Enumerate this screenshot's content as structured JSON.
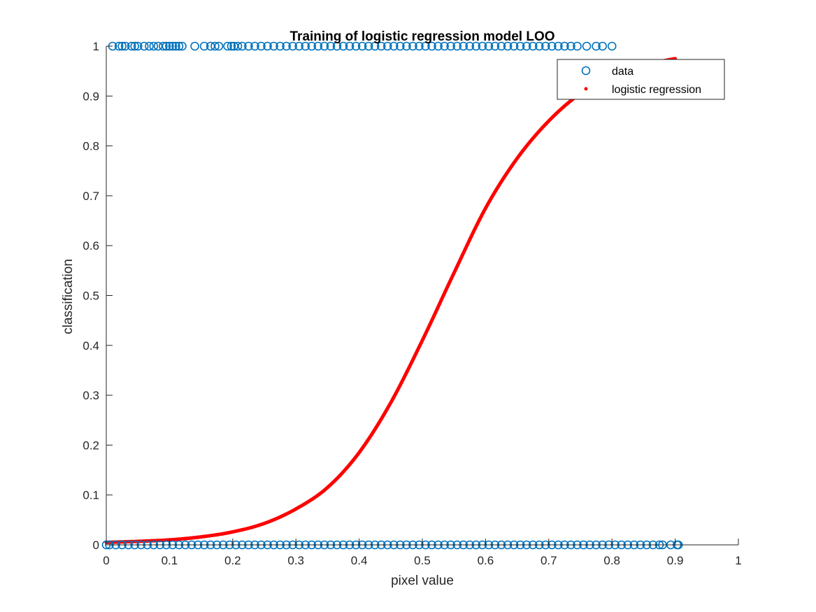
{
  "colors": {
    "data_marker": "#0072BD",
    "regression_line": "#FF0000",
    "axis": "#262626",
    "background": "#FFFFFF"
  },
  "chart_data": {
    "type": "scatter",
    "title": "Training of logistic regression model LOO",
    "xlabel": "pixel value",
    "ylabel": "classification",
    "xlim": [
      0,
      1
    ],
    "ylim": [
      0,
      1
    ],
    "xticks": [
      "0",
      "0.1",
      "0.2",
      "0.3",
      "0.4",
      "0.5",
      "0.6",
      "0.7",
      "0.8",
      "0.9",
      "1"
    ],
    "yticks": [
      "0",
      "0.1",
      "0.2",
      "0.3",
      "0.4",
      "0.5",
      "0.6",
      "0.7",
      "0.8",
      "0.9",
      "1"
    ],
    "grid": false,
    "legend_position": "top-right",
    "legend": [
      "data",
      "logistic regression"
    ],
    "series": [
      {
        "name": "data",
        "kind": "scatter",
        "marker": "open-circle",
        "points": [
          {
            "x": 0.01,
            "y": 1
          },
          {
            "x": 0.02,
            "y": 1
          },
          {
            "x": 0.025,
            "y": 1
          },
          {
            "x": 0.03,
            "y": 1
          },
          {
            "x": 0.04,
            "y": 1
          },
          {
            "x": 0.045,
            "y": 1
          },
          {
            "x": 0.05,
            "y": 1
          },
          {
            "x": 0.06,
            "y": 1
          },
          {
            "x": 0.068,
            "y": 1
          },
          {
            "x": 0.075,
            "y": 1
          },
          {
            "x": 0.082,
            "y": 1
          },
          {
            "x": 0.09,
            "y": 1
          },
          {
            "x": 0.095,
            "y": 1
          },
          {
            "x": 0.1,
            "y": 1
          },
          {
            "x": 0.105,
            "y": 1
          },
          {
            "x": 0.11,
            "y": 1
          },
          {
            "x": 0.115,
            "y": 1
          },
          {
            "x": 0.12,
            "y": 1
          },
          {
            "x": 0.14,
            "y": 1
          },
          {
            "x": 0.155,
            "y": 1
          },
          {
            "x": 0.165,
            "y": 1
          },
          {
            "x": 0.172,
            "y": 1
          },
          {
            "x": 0.178,
            "y": 1
          },
          {
            "x": 0.192,
            "y": 1
          },
          {
            "x": 0.198,
            "y": 1
          },
          {
            "x": 0.202,
            "y": 1
          },
          {
            "x": 0.208,
            "y": 1
          },
          {
            "x": 0.215,
            "y": 1
          },
          {
            "x": 0.225,
            "y": 1
          },
          {
            "x": 0.235,
            "y": 1
          },
          {
            "x": 0.245,
            "y": 1
          },
          {
            "x": 0.255,
            "y": 1
          },
          {
            "x": 0.265,
            "y": 1
          },
          {
            "x": 0.275,
            "y": 1
          },
          {
            "x": 0.285,
            "y": 1
          },
          {
            "x": 0.295,
            "y": 1
          },
          {
            "x": 0.305,
            "y": 1
          },
          {
            "x": 0.315,
            "y": 1
          },
          {
            "x": 0.325,
            "y": 1
          },
          {
            "x": 0.335,
            "y": 1
          },
          {
            "x": 0.345,
            "y": 1
          },
          {
            "x": 0.355,
            "y": 1
          },
          {
            "x": 0.365,
            "y": 1
          },
          {
            "x": 0.375,
            "y": 1
          },
          {
            "x": 0.385,
            "y": 1
          },
          {
            "x": 0.395,
            "y": 1
          },
          {
            "x": 0.405,
            "y": 1
          },
          {
            "x": 0.415,
            "y": 1
          },
          {
            "x": 0.425,
            "y": 1
          },
          {
            "x": 0.435,
            "y": 1
          },
          {
            "x": 0.445,
            "y": 1
          },
          {
            "x": 0.455,
            "y": 1
          },
          {
            "x": 0.465,
            "y": 1
          },
          {
            "x": 0.475,
            "y": 1
          },
          {
            "x": 0.485,
            "y": 1
          },
          {
            "x": 0.495,
            "y": 1
          },
          {
            "x": 0.505,
            "y": 1
          },
          {
            "x": 0.515,
            "y": 1
          },
          {
            "x": 0.525,
            "y": 1
          },
          {
            "x": 0.535,
            "y": 1
          },
          {
            "x": 0.545,
            "y": 1
          },
          {
            "x": 0.555,
            "y": 1
          },
          {
            "x": 0.565,
            "y": 1
          },
          {
            "x": 0.575,
            "y": 1
          },
          {
            "x": 0.585,
            "y": 1
          },
          {
            "x": 0.595,
            "y": 1
          },
          {
            "x": 0.605,
            "y": 1
          },
          {
            "x": 0.615,
            "y": 1
          },
          {
            "x": 0.625,
            "y": 1
          },
          {
            "x": 0.635,
            "y": 1
          },
          {
            "x": 0.645,
            "y": 1
          },
          {
            "x": 0.655,
            "y": 1
          },
          {
            "x": 0.665,
            "y": 1
          },
          {
            "x": 0.675,
            "y": 1
          },
          {
            "x": 0.685,
            "y": 1
          },
          {
            "x": 0.695,
            "y": 1
          },
          {
            "x": 0.705,
            "y": 1
          },
          {
            "x": 0.715,
            "y": 1
          },
          {
            "x": 0.725,
            "y": 1
          },
          {
            "x": 0.735,
            "y": 1
          },
          {
            "x": 0.745,
            "y": 1
          },
          {
            "x": 0.76,
            "y": 1
          },
          {
            "x": 0.775,
            "y": 1
          },
          {
            "x": 0.785,
            "y": 1
          },
          {
            "x": 0.8,
            "y": 1
          },
          {
            "x": 0.0,
            "y": 0
          },
          {
            "x": 0.005,
            "y": 0
          },
          {
            "x": 0.015,
            "y": 0
          },
          {
            "x": 0.025,
            "y": 0
          },
          {
            "x": 0.035,
            "y": 0
          },
          {
            "x": 0.045,
            "y": 0
          },
          {
            "x": 0.055,
            "y": 0
          },
          {
            "x": 0.065,
            "y": 0
          },
          {
            "x": 0.075,
            "y": 0
          },
          {
            "x": 0.085,
            "y": 0
          },
          {
            "x": 0.095,
            "y": 0
          },
          {
            "x": 0.105,
            "y": 0
          },
          {
            "x": 0.115,
            "y": 0
          },
          {
            "x": 0.125,
            "y": 0
          },
          {
            "x": 0.135,
            "y": 0
          },
          {
            "x": 0.145,
            "y": 0
          },
          {
            "x": 0.155,
            "y": 0
          },
          {
            "x": 0.165,
            "y": 0
          },
          {
            "x": 0.175,
            "y": 0
          },
          {
            "x": 0.185,
            "y": 0
          },
          {
            "x": 0.195,
            "y": 0
          },
          {
            "x": 0.205,
            "y": 0
          },
          {
            "x": 0.215,
            "y": 0
          },
          {
            "x": 0.225,
            "y": 0
          },
          {
            "x": 0.235,
            "y": 0
          },
          {
            "x": 0.245,
            "y": 0
          },
          {
            "x": 0.255,
            "y": 0
          },
          {
            "x": 0.265,
            "y": 0
          },
          {
            "x": 0.275,
            "y": 0
          },
          {
            "x": 0.285,
            "y": 0
          },
          {
            "x": 0.295,
            "y": 0
          },
          {
            "x": 0.305,
            "y": 0
          },
          {
            "x": 0.315,
            "y": 0
          },
          {
            "x": 0.325,
            "y": 0
          },
          {
            "x": 0.335,
            "y": 0
          },
          {
            "x": 0.345,
            "y": 0
          },
          {
            "x": 0.355,
            "y": 0
          },
          {
            "x": 0.365,
            "y": 0
          },
          {
            "x": 0.375,
            "y": 0
          },
          {
            "x": 0.385,
            "y": 0
          },
          {
            "x": 0.395,
            "y": 0
          },
          {
            "x": 0.405,
            "y": 0
          },
          {
            "x": 0.415,
            "y": 0
          },
          {
            "x": 0.425,
            "y": 0
          },
          {
            "x": 0.435,
            "y": 0
          },
          {
            "x": 0.445,
            "y": 0
          },
          {
            "x": 0.455,
            "y": 0
          },
          {
            "x": 0.465,
            "y": 0
          },
          {
            "x": 0.475,
            "y": 0
          },
          {
            "x": 0.485,
            "y": 0
          },
          {
            "x": 0.495,
            "y": 0
          },
          {
            "x": 0.505,
            "y": 0
          },
          {
            "x": 0.515,
            "y": 0
          },
          {
            "x": 0.525,
            "y": 0
          },
          {
            "x": 0.535,
            "y": 0
          },
          {
            "x": 0.545,
            "y": 0
          },
          {
            "x": 0.555,
            "y": 0
          },
          {
            "x": 0.565,
            "y": 0
          },
          {
            "x": 0.575,
            "y": 0
          },
          {
            "x": 0.585,
            "y": 0
          },
          {
            "x": 0.595,
            "y": 0
          },
          {
            "x": 0.605,
            "y": 0
          },
          {
            "x": 0.615,
            "y": 0
          },
          {
            "x": 0.625,
            "y": 0
          },
          {
            "x": 0.635,
            "y": 0
          },
          {
            "x": 0.645,
            "y": 0
          },
          {
            "x": 0.655,
            "y": 0
          },
          {
            "x": 0.665,
            "y": 0
          },
          {
            "x": 0.675,
            "y": 0
          },
          {
            "x": 0.685,
            "y": 0
          },
          {
            "x": 0.695,
            "y": 0
          },
          {
            "x": 0.705,
            "y": 0
          },
          {
            "x": 0.715,
            "y": 0
          },
          {
            "x": 0.725,
            "y": 0
          },
          {
            "x": 0.735,
            "y": 0
          },
          {
            "x": 0.745,
            "y": 0
          },
          {
            "x": 0.755,
            "y": 0
          },
          {
            "x": 0.765,
            "y": 0
          },
          {
            "x": 0.775,
            "y": 0
          },
          {
            "x": 0.785,
            "y": 0
          },
          {
            "x": 0.795,
            "y": 0
          },
          {
            "x": 0.805,
            "y": 0
          },
          {
            "x": 0.815,
            "y": 0
          },
          {
            "x": 0.825,
            "y": 0
          },
          {
            "x": 0.835,
            "y": 0
          },
          {
            "x": 0.845,
            "y": 0
          },
          {
            "x": 0.855,
            "y": 0
          },
          {
            "x": 0.865,
            "y": 0
          },
          {
            "x": 0.875,
            "y": 0
          },
          {
            "x": 0.88,
            "y": 0
          },
          {
            "x": 0.893,
            "y": 0
          },
          {
            "x": 0.903,
            "y": 0
          },
          {
            "x": 0.905,
            "y": 0
          }
        ]
      },
      {
        "name": "logistic regression",
        "kind": "line",
        "marker": "dot",
        "points": [
          {
            "x": 0.0,
            "y": 0.005
          },
          {
            "x": 0.05,
            "y": 0.007
          },
          {
            "x": 0.1,
            "y": 0.01
          },
          {
            "x": 0.15,
            "y": 0.016
          },
          {
            "x": 0.2,
            "y": 0.026
          },
          {
            "x": 0.25,
            "y": 0.043
          },
          {
            "x": 0.3,
            "y": 0.072
          },
          {
            "x": 0.35,
            "y": 0.115
          },
          {
            "x": 0.4,
            "y": 0.185
          },
          {
            "x": 0.45,
            "y": 0.285
          },
          {
            "x": 0.5,
            "y": 0.41
          },
          {
            "x": 0.55,
            "y": 0.545
          },
          {
            "x": 0.6,
            "y": 0.675
          },
          {
            "x": 0.65,
            "y": 0.775
          },
          {
            "x": 0.7,
            "y": 0.85
          },
          {
            "x": 0.75,
            "y": 0.905
          },
          {
            "x": 0.8,
            "y": 0.94
          },
          {
            "x": 0.85,
            "y": 0.962
          },
          {
            "x": 0.9,
            "y": 0.975
          }
        ]
      }
    ]
  }
}
